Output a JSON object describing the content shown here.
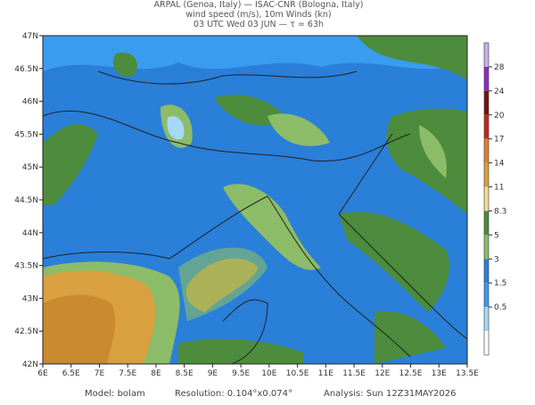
{
  "header": {
    "lines": [
      "ARPAL (Genoa, Italy)  —  ISAC-CNR (Bologna, Italy)",
      "wind speed (m/s), 10m Winds (kn)",
      "03 UTC Wed 03 JUN  —  τ = 63h"
    ]
  },
  "map": {
    "lat_labels": [
      "47N",
      "46.5N",
      "46N",
      "45.5N",
      "45N",
      "44.5N",
      "44N",
      "43.5N",
      "43N",
      "42.5N",
      "42N"
    ],
    "lon_labels": [
      "6E",
      "6.5E",
      "7E",
      "7.5E",
      "8E",
      "8.5E",
      "9E",
      "9.5E",
      "10E",
      "10.5E",
      "11E",
      "11.5E",
      "12E",
      "12.5E",
      "13E",
      "13.5E"
    ]
  },
  "colorbar": {
    "labels": [
      "28",
      "24",
      "20",
      "17",
      "14",
      "11",
      "8.3",
      "5",
      "3",
      "1.5",
      "0.5"
    ],
    "colors": [
      "#c9b2ec",
      "#8a2ec0",
      "#7a1010",
      "#c02a20",
      "#e08030",
      "#d9a040",
      "#f0dc98",
      "#4c8c3c",
      "#8cbc68",
      "#2a7fd8",
      "#3a9cf0",
      "#a8d8f8",
      "#ffffff"
    ]
  },
  "footer": {
    "model": "Model: bolam",
    "resolution": "Resolution: 0.104°x0.074°",
    "analysis": "Analysis: Sun 12Z31MAY2026"
  }
}
